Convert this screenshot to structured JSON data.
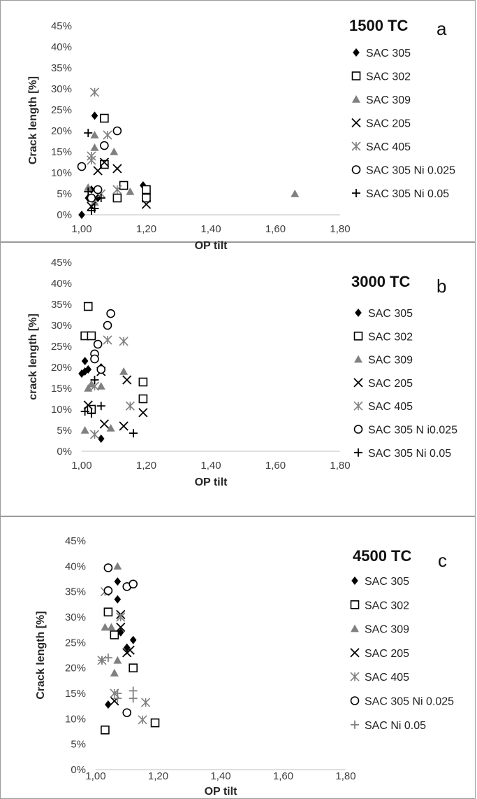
{
  "chart_data": [
    {
      "type": "scatter",
      "title": "1500 TC",
      "panel_letter": "a",
      "xlabel": "OP tilt",
      "ylabel": "Crack length [%]",
      "xlim": [
        1.0,
        1.8
      ],
      "ylim": [
        0,
        0.45
      ],
      "x_ticks": [
        "1,00",
        "1,20",
        "1,40",
        "1,60",
        "1,80"
      ],
      "y_ticks": [
        "0%",
        "5%",
        "10%",
        "15%",
        "20%",
        "25%",
        "30%",
        "35%",
        "40%",
        "45%"
      ],
      "grid": false,
      "legend_position": "right",
      "series": [
        {
          "name": "SAC 305",
          "marker": "diamond",
          "color": "#000000",
          "points": [
            [
              1.0,
              0.0
            ],
            [
              1.03,
              0.06
            ],
            [
              1.04,
              0.236
            ],
            [
              1.05,
              0.04
            ],
            [
              1.19,
              0.07
            ],
            [
              1.02,
              0.04
            ]
          ]
        },
        {
          "name": "SAC 302",
          "marker": "square",
          "color": "#000000",
          "points": [
            [
              1.07,
              0.23
            ],
            [
              1.07,
              0.12
            ],
            [
              1.13,
              0.07
            ],
            [
              1.11,
              0.04
            ],
            [
              1.2,
              0.06
            ],
            [
              1.2,
              0.04
            ]
          ]
        },
        {
          "name": "SAC 309",
          "marker": "triangle",
          "color": "#808080",
          "points": [
            [
              1.04,
              0.19
            ],
            [
              1.04,
              0.16
            ],
            [
              1.1,
              0.15
            ],
            [
              1.15,
              0.055
            ],
            [
              1.04,
              0.03
            ],
            [
              1.66,
              0.05
            ],
            [
              1.02,
              0.065
            ]
          ]
        },
        {
          "name": "SAC 205",
          "marker": "x",
          "color": "#000000",
          "points": [
            [
              1.05,
              0.105
            ],
            [
              1.11,
              0.11
            ],
            [
              1.2,
              0.025
            ],
            [
              1.03,
              0.02
            ],
            [
              1.07,
              0.125
            ]
          ]
        },
        {
          "name": "SAC 405",
          "marker": "asterisk",
          "color": "#808080",
          "points": [
            [
              1.04,
              0.292
            ],
            [
              1.08,
              0.19
            ],
            [
              1.03,
              0.13
            ],
            [
              1.03,
              0.14
            ],
            [
              1.11,
              0.06
            ],
            [
              1.06,
              0.05
            ]
          ]
        },
        {
          "name": "SAC 305 Ni 0.025",
          "marker": "circle",
          "color": "#000000",
          "points": [
            [
              1.0,
              0.115
            ],
            [
              1.11,
              0.2
            ],
            [
              1.07,
              0.165
            ],
            [
              1.05,
              0.06
            ],
            [
              1.03,
              0.04
            ]
          ]
        },
        {
          "name": "SAC 305 Ni 0.05",
          "marker": "plus",
          "color": "#000000",
          "points": [
            [
              1.02,
              0.195
            ],
            [
              1.06,
              0.04
            ],
            [
              1.03,
              0.01
            ],
            [
              1.04,
              0.015
            ],
            [
              1.02,
              0.055
            ]
          ]
        }
      ]
    },
    {
      "type": "scatter",
      "title": "3000 TC",
      "panel_letter": "b",
      "xlabel": "OP tilt",
      "ylabel": "crack length [%]",
      "xlim": [
        1.0,
        1.8
      ],
      "ylim": [
        0,
        0.45
      ],
      "x_ticks": [
        "1,00",
        "1,20",
        "1,40",
        "1,60",
        "1,80"
      ],
      "y_ticks": [
        "0%",
        "5%",
        "10%",
        "15%",
        "20%",
        "25%",
        "30%",
        "35%",
        "40%",
        "45%"
      ],
      "grid": false,
      "legend_position": "right",
      "series": [
        {
          "name": "SAC 305",
          "marker": "diamond",
          "color": "#000000",
          "points": [
            [
              1.01,
              0.215
            ],
            [
              1.01,
              0.19
            ],
            [
              1.0,
              0.185
            ],
            [
              1.02,
              0.195
            ],
            [
              1.06,
              0.2
            ],
            [
              1.06,
              0.03
            ]
          ]
        },
        {
          "name": "SAC 302",
          "marker": "square",
          "color": "#000000",
          "points": [
            [
              1.02,
              0.345
            ],
            [
              1.01,
              0.275
            ],
            [
              1.03,
              0.275
            ],
            [
              1.19,
              0.165
            ],
            [
              1.19,
              0.125
            ],
            [
              1.03,
              0.1
            ]
          ]
        },
        {
          "name": "SAC 309",
          "marker": "triangle",
          "color": "#808080",
          "points": [
            [
              1.13,
              0.19
            ],
            [
              1.02,
              0.15
            ],
            [
              1.06,
              0.155
            ],
            [
              1.01,
              0.05
            ],
            [
              1.09,
              0.055
            ],
            [
              1.03,
              0.16
            ]
          ]
        },
        {
          "name": "SAC 205",
          "marker": "x",
          "color": "#000000",
          "points": [
            [
              1.06,
              0.19
            ],
            [
              1.14,
              0.17
            ],
            [
              1.02,
              0.11
            ],
            [
              1.07,
              0.065
            ],
            [
              1.13,
              0.06
            ],
            [
              1.19,
              0.092
            ]
          ]
        },
        {
          "name": "SAC 405",
          "marker": "asterisk",
          "color": "#808080",
          "points": [
            [
              1.08,
              0.265
            ],
            [
              1.13,
              0.262
            ],
            [
              1.15,
              0.108
            ],
            [
              1.04,
              0.04
            ],
            [
              1.04,
              0.155
            ]
          ]
        },
        {
          "name": "SAC 305 N i0.025",
          "marker": "circle",
          "color": "#000000",
          "points": [
            [
              1.09,
              0.328
            ],
            [
              1.08,
              0.3
            ],
            [
              1.05,
              0.255
            ],
            [
              1.04,
              0.232
            ],
            [
              1.04,
              0.22
            ],
            [
              1.06,
              0.195
            ]
          ]
        },
        {
          "name": "SAC 305 Ni 0.05",
          "marker": "plus",
          "color": "#000000",
          "points": [
            [
              1.04,
              0.17
            ],
            [
              1.01,
              0.095
            ],
            [
              1.03,
              0.09
            ],
            [
              1.06,
              0.108
            ],
            [
              1.16,
              0.043
            ]
          ]
        }
      ]
    },
    {
      "type": "scatter",
      "title": "4500 TC",
      "panel_letter": "c",
      "xlabel": "OP tilt",
      "ylabel": "Crack length [%]",
      "xlim": [
        1.0,
        1.8
      ],
      "ylim": [
        0,
        0.45
      ],
      "x_ticks": [
        "1,00",
        "1,20",
        "1,40",
        "1,60",
        "1,80"
      ],
      "y_ticks": [
        "0%",
        "5%",
        "10%",
        "15%",
        "20%",
        "25%",
        "30%",
        "35%",
        "40%",
        "45%"
      ],
      "grid": false,
      "legend_position": "right",
      "series": [
        {
          "name": "SAC 305",
          "marker": "diamond",
          "color": "#000000",
          "points": [
            [
              1.07,
              0.37
            ],
            [
              1.07,
              0.335
            ],
            [
              1.08,
              0.27
            ],
            [
              1.12,
              0.255
            ],
            [
              1.1,
              0.24
            ],
            [
              1.04,
              0.128
            ]
          ]
        },
        {
          "name": "SAC 302",
          "marker": "square",
          "color": "#000000",
          "points": [
            [
              1.04,
              0.31
            ],
            [
              1.06,
              0.265
            ],
            [
              1.12,
              0.2
            ],
            [
              1.19,
              0.092
            ],
            [
              1.03,
              0.078
            ]
          ]
        },
        {
          "name": "SAC 309",
          "marker": "triangle",
          "color": "#808080",
          "points": [
            [
              1.07,
              0.4
            ],
            [
              1.03,
              0.28
            ],
            [
              1.05,
              0.28
            ],
            [
              1.07,
              0.215
            ],
            [
              1.06,
              0.19
            ]
          ]
        },
        {
          "name": "SAC 205",
          "marker": "x",
          "color": "#000000",
          "points": [
            [
              1.08,
              0.305
            ],
            [
              1.08,
              0.28
            ],
            [
              1.1,
              0.23
            ],
            [
              1.11,
              0.235
            ],
            [
              1.06,
              0.135
            ]
          ]
        },
        {
          "name": "SAC 405",
          "marker": "asterisk",
          "color": "#808080",
          "points": [
            [
              1.03,
              0.35
            ],
            [
              1.08,
              0.3
            ],
            [
              1.02,
              0.215
            ],
            [
              1.06,
              0.15
            ],
            [
              1.15,
              0.098
            ],
            [
              1.16,
              0.132
            ]
          ]
        },
        {
          "name": "SAC 305 Ni 0.025",
          "marker": "circle",
          "color": "#000000",
          "points": [
            [
              1.04,
              0.397
            ],
            [
              1.04,
              0.352
            ],
            [
              1.1,
              0.36
            ],
            [
              1.12,
              0.365
            ],
            [
              1.1,
              0.112
            ]
          ]
        },
        {
          "name": "SAC Ni 0.05",
          "marker": "plus",
          "color": "#808080",
          "points": [
            [
              1.04,
              0.22
            ],
            [
              1.02,
              0.215
            ],
            [
              1.12,
              0.155
            ],
            [
              1.12,
              0.14
            ],
            [
              1.07,
              0.15
            ],
            [
              1.07,
              0.14
            ]
          ]
        }
      ]
    }
  ]
}
